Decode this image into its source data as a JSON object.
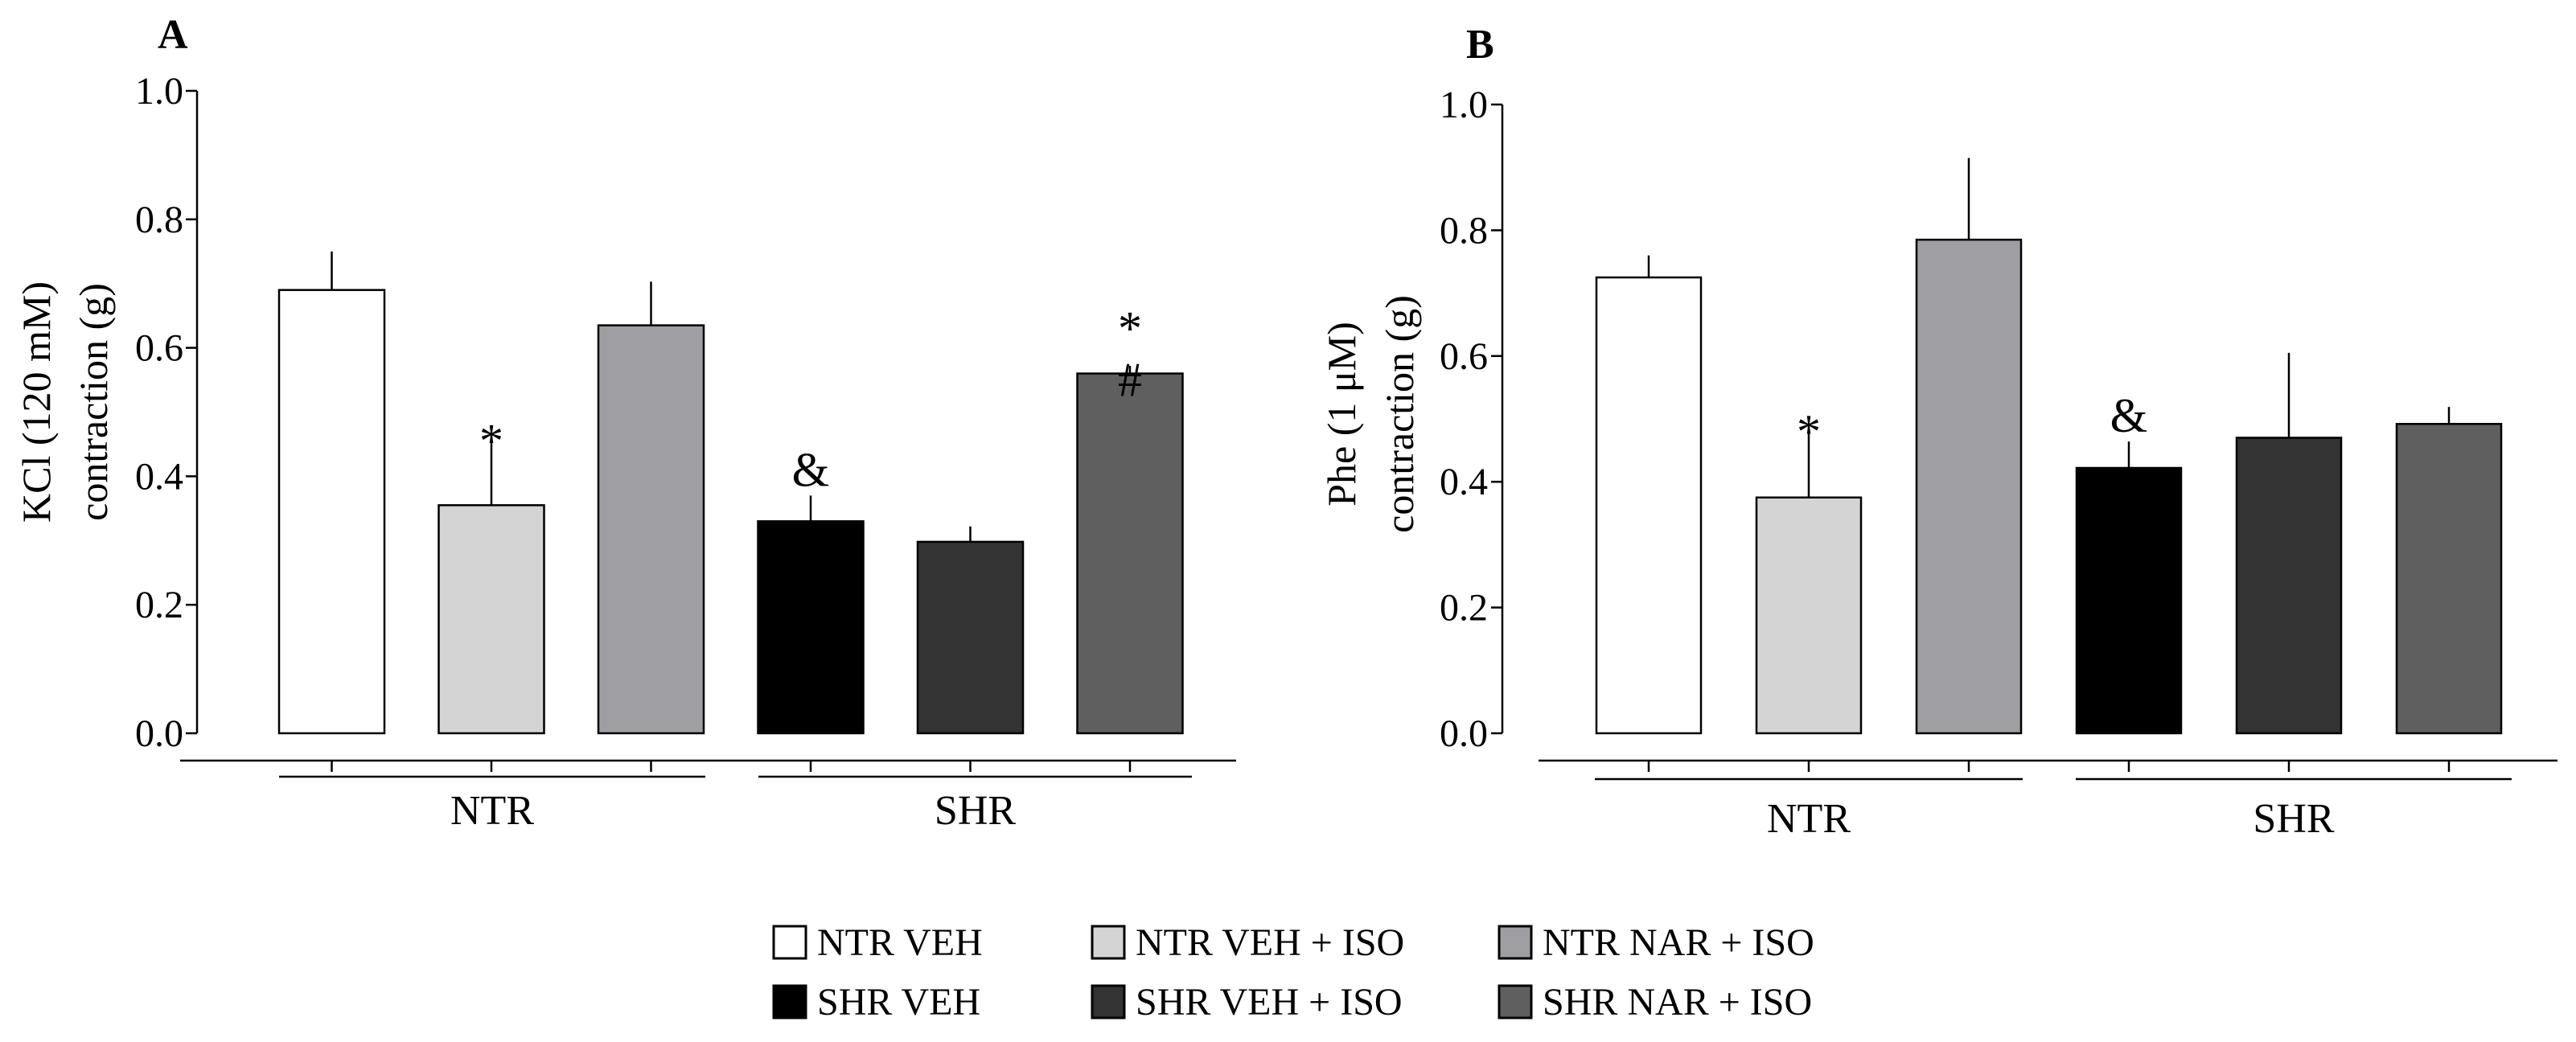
{
  "colors": {
    "NTR VEH": "#ffffff",
    "NTR VEH + ISO": "#d4d4d4",
    "NTR NAR + ISO": "#9f9ea2",
    "SHR VEH": "#000000",
    "SHR VEH + ISO": "#333333",
    "SHR NAR + ISO": "#5f5f5f"
  },
  "legend": {
    "items": [
      "NTR VEH",
      "NTR VEH + ISO",
      "NTR NAR + ISO",
      "SHR VEH",
      "SHR VEH + ISO",
      "SHR NAR + ISO"
    ]
  },
  "chart_data": [
    {
      "type": "bar",
      "panel": "A",
      "ylabel_lines": [
        "KCl (120 mM)",
        "contraction (g)"
      ],
      "ylim": [
        0.0,
        1.0
      ],
      "yticks": [
        "0.0",
        "0.2",
        "0.4",
        "0.6",
        "0.8",
        "1.0"
      ],
      "groups": [
        "NTR",
        "SHR"
      ],
      "categories": [
        "NTR VEH",
        "NTR VEH + ISO",
        "NTR NAR + ISO",
        "SHR VEH",
        "SHR VEH + ISO",
        "SHR NAR + ISO"
      ],
      "values": [
        0.69,
        0.355,
        0.635,
        0.33,
        0.298,
        0.56
      ],
      "errors": [
        0.06,
        0.11,
        0.068,
        0.04,
        0.024,
        0.012
      ],
      "significance": [
        "",
        "*",
        "",
        "&",
        "",
        "*\n#"
      ]
    },
    {
      "type": "bar",
      "panel": "B",
      "ylabel_lines": [
        "Phe (1 μM)",
        "contraction (g)"
      ],
      "ylim": [
        0.0,
        1.0
      ],
      "yticks": [
        "0.0",
        "0.2",
        "0.4",
        "0.6",
        "0.8",
        "1.0"
      ],
      "groups": [
        "NTR",
        "SHR"
      ],
      "categories": [
        "NTR VEH",
        "NTR VEH + ISO",
        "NTR NAR + ISO",
        "SHR VEH",
        "SHR VEH + ISO",
        "SHR NAR + ISO"
      ],
      "values": [
        0.725,
        0.375,
        0.785,
        0.422,
        0.47,
        0.492
      ],
      "errors": [
        0.035,
        0.115,
        0.13,
        0.042,
        0.135,
        0.027
      ],
      "significance": [
        "",
        "*",
        "",
        "&",
        "",
        ""
      ]
    }
  ]
}
